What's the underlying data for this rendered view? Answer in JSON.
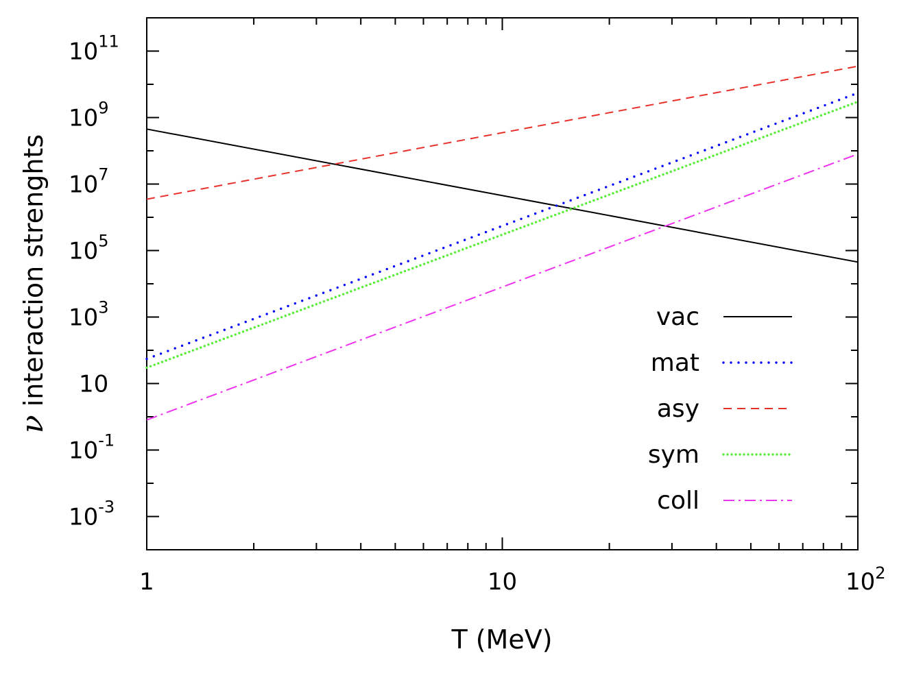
{
  "chart_data": {
    "type": "line",
    "title": "",
    "xlabel": "T (MeV)",
    "ylabel_symbol": "ν",
    "ylabel_text": " interaction strenghts",
    "xscale": "log",
    "yscale": "log",
    "xlim": [
      1,
      100
    ],
    "ylim": [
      0.0001,
      1000000000000.0
    ],
    "grid": false,
    "legend_position": "lower-right",
    "x_ticks": [
      {
        "value": 1,
        "base": "1",
        "exp": ""
      },
      {
        "value": 10,
        "base": "10",
        "exp": ""
      },
      {
        "value": 100,
        "base": "10",
        "exp": "2"
      }
    ],
    "y_ticks": [
      {
        "value": 100000000000.0,
        "base": "10",
        "exp": "11"
      },
      {
        "value": 1000000000.0,
        "base": "10",
        "exp": "9"
      },
      {
        "value": 10000000.0,
        "base": "10",
        "exp": "7"
      },
      {
        "value": 100000.0,
        "base": "10",
        "exp": "5"
      },
      {
        "value": 1000.0,
        "base": "10",
        "exp": "3"
      },
      {
        "value": 10,
        "base": "10",
        "exp": ""
      },
      {
        "value": 0.1,
        "base": "10",
        "exp": "-1"
      },
      {
        "value": 0.001,
        "base": "10",
        "exp": "-3"
      }
    ],
    "series": [
      {
        "name": "vac",
        "color": "#000000",
        "dash": "solid",
        "x": [
          1,
          100
        ],
        "y": [
          450000000.0,
          45000.0
        ]
      },
      {
        "name": "mat",
        "color": "#0000ff",
        "dash": "dotted-sparse",
        "x": [
          1,
          100
        ],
        "y": [
          55,
          5500000000.0
        ]
      },
      {
        "name": "asy",
        "color": "#e8302b",
        "dash": "dashed",
        "x": [
          1,
          100
        ],
        "y": [
          3500000.0,
          35000000000.0
        ]
      },
      {
        "name": "sym",
        "color": "#55ee33",
        "dash": "dotted-dense",
        "x": [
          1,
          100
        ],
        "y": [
          30,
          3000000000.0
        ]
      },
      {
        "name": "coll",
        "color": "#ee33ee",
        "dash": "dash-dot",
        "x": [
          1,
          100
        ],
        "y": [
          0.8,
          80000000.0
        ]
      }
    ]
  }
}
